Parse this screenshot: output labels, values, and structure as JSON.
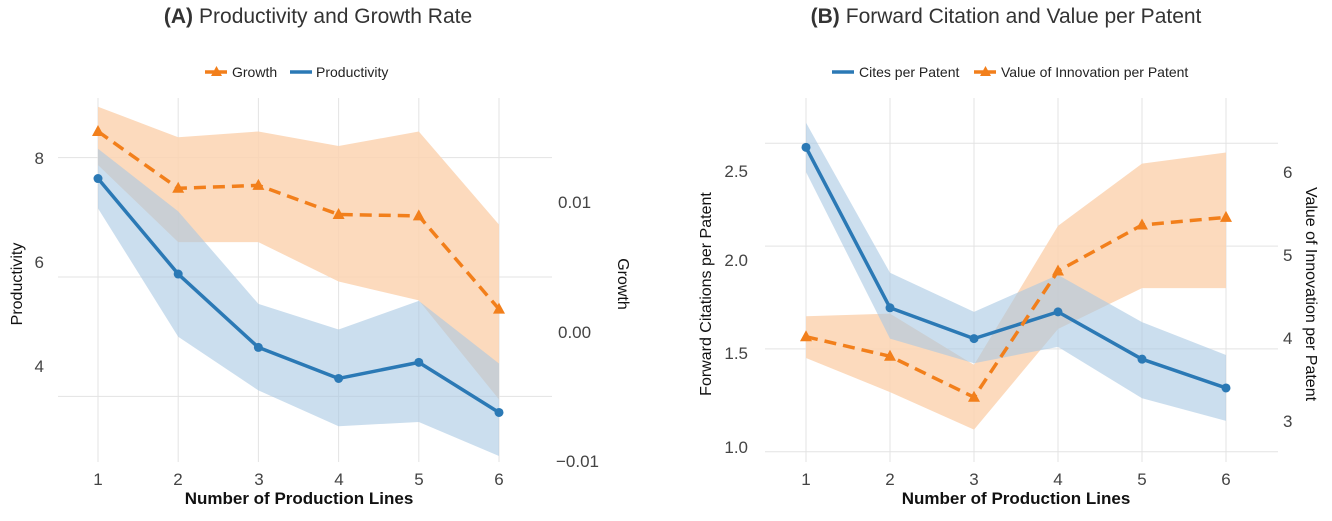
{
  "colors": {
    "blue": "#2b79b5",
    "orange": "#f27f1b",
    "blue_band": "#a9c8e2",
    "orange_band": "#fcd3b1"
  },
  "chart_data": [
    {
      "type": "line",
      "panel_label": "(A)",
      "title": "Productivity and Growth Rate",
      "xlabel": "Number of Production Lines",
      "ylabel": "Productivity",
      "y2label": "Growth",
      "x": [
        1,
        2,
        3,
        4,
        5,
        6
      ],
      "xticks": [
        "1",
        "2",
        "3",
        "4",
        "5",
        "6"
      ],
      "ylim": [
        2.9,
        9.0
      ],
      "yticks": [
        "4",
        "6",
        "8"
      ],
      "y2lim": [
        -0.0105,
        0.0145
      ],
      "y2ticks": [
        "−0.01",
        "0.00",
        "0.01"
      ],
      "legend": [
        "Growth",
        "Productivity"
      ],
      "legend_position": "top-center",
      "series": [
        {
          "name": "Productivity",
          "axis": "left",
          "marker": "circle",
          "style": "solid",
          "values": [
            7.65,
            6.05,
            4.82,
            4.3,
            4.57,
            3.73
          ],
          "lower": [
            7.15,
            5.0,
            4.1,
            3.5,
            3.57,
            3.0
          ],
          "upper": [
            8.15,
            7.1,
            5.55,
            5.12,
            5.6,
            4.55
          ]
        },
        {
          "name": "Growth",
          "axis": "right",
          "marker": "triangle",
          "style": "dashed",
          "values": [
            0.0122,
            0.0083,
            0.0085,
            0.0065,
            0.0064,
            0.0
          ],
          "lower": [
            0.0099,
            0.0046,
            0.0046,
            0.0019,
            0.0006,
            -0.0062
          ],
          "upper": [
            0.0139,
            0.0118,
            0.0122,
            0.0112,
            0.0122,
            0.0058
          ]
        }
      ]
    },
    {
      "type": "line",
      "panel_label": "(B)",
      "title": "Forward Citation and Value per Patent",
      "xlabel": "Number of Production Lines",
      "ylabel": "Forward Citations per Patent",
      "y2label": "Value of Innovation per Patent",
      "x": [
        1,
        2,
        3,
        4,
        5,
        6
      ],
      "xticks": [
        "1",
        "2",
        "3",
        "4",
        "5",
        "6"
      ],
      "ylim": [
        0.95,
        2.72
      ],
      "yticks": [
        "1.0",
        "1.5",
        "2.0",
        "2.5"
      ],
      "y2lim": [
        2.64,
        6.91
      ],
      "y2ticks": [
        "3",
        "4",
        "5",
        "6"
      ],
      "legend": [
        "Cites per Patent",
        "Value of Innovation per Patent"
      ],
      "legend_position": "top-center",
      "series": [
        {
          "name": "Cites per Patent",
          "axis": "left",
          "marker": "circle",
          "style": "solid",
          "values": [
            2.48,
            1.7,
            1.55,
            1.68,
            1.45,
            1.31
          ],
          "lower": [
            2.36,
            1.55,
            1.43,
            1.51,
            1.26,
            1.15
          ],
          "upper": [
            2.6,
            1.87,
            1.68,
            1.86,
            1.63,
            1.47
          ]
        },
        {
          "name": "Value of Innovation per Patent",
          "axis": "right",
          "marker": "triangle",
          "style": "dashed",
          "values": [
            4.11,
            3.88,
            3.4,
            4.88,
            5.42,
            5.51
          ],
          "lower": [
            3.86,
            3.46,
            3.02,
            4.2,
            4.68,
            4.68
          ],
          "upper": [
            4.35,
            4.38,
            3.78,
            5.41,
            6.14,
            6.27
          ]
        }
      ]
    }
  ]
}
